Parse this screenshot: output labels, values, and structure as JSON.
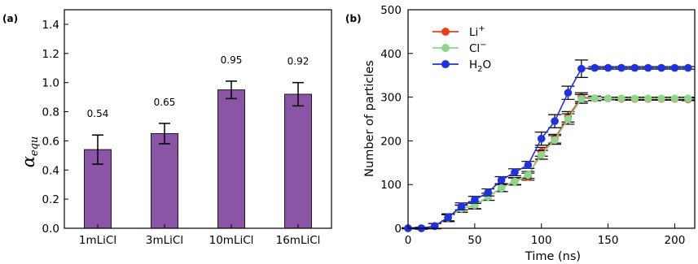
{
  "chart_data": [
    {
      "panel_label": "(a)",
      "type": "bar",
      "categories": [
        "1mLiCl",
        "3mLiCl",
        "10mLiCl",
        "16mLiCl"
      ],
      "values": [
        0.54,
        0.65,
        0.95,
        0.92
      ],
      "errors": [
        0.1,
        0.07,
        0.06,
        0.08
      ],
      "value_labels": [
        "0.54",
        "0.65",
        "0.95",
        "0.92"
      ],
      "ylabel_symbol": "α",
      "ylabel_subscript": "equ",
      "ylim": [
        0.0,
        1.5
      ],
      "yticks": [
        0.0,
        0.2,
        0.4,
        0.6,
        0.8,
        1.0,
        1.2,
        1.4
      ],
      "ytick_labels": [
        "0.0",
        "0.2",
        "0.4",
        "0.6",
        "0.8",
        "1.0",
        "1.2",
        "1.4"
      ],
      "bar_color": "#8b55a5",
      "grid": false
    },
    {
      "panel_label": "(b)",
      "type": "line",
      "xlabel": "Time (ns)",
      "ylabel": "Number of particles",
      "xlim": [
        0,
        215
      ],
      "ylim": [
        0,
        500
      ],
      "xticks": [
        0,
        50,
        100,
        150,
        200
      ],
      "xtick_labels": [
        "0",
        "50",
        "100",
        "150",
        "200"
      ],
      "yticks": [
        0,
        100,
        200,
        300,
        400,
        500
      ],
      "ytick_labels": [
        "0",
        "100",
        "200",
        "300",
        "400",
        "500"
      ],
      "legend_position": "top-left",
      "grid": false,
      "x": [
        0,
        10,
        20,
        30,
        40,
        50,
        60,
        70,
        80,
        90,
        100,
        110,
        120,
        130,
        140,
        150,
        160,
        170,
        180,
        190,
        200,
        210
      ],
      "series": [
        {
          "name": "Li⁺",
          "legend_base": "Li",
          "legend_sup": "+",
          "color": "#e8401c",
          "values": [
            0,
            0,
            5,
            23,
            45,
            52,
            72,
            92,
            108,
            118,
            175,
            205,
            255,
            300,
            297,
            297,
            296,
            296,
            296,
            296,
            296,
            295
          ],
          "errors": [
            1,
            2,
            6,
            8,
            8,
            8,
            8,
            8,
            8,
            8,
            10,
            10,
            12,
            10,
            5,
            3,
            3,
            3,
            3,
            3,
            3,
            3
          ]
        },
        {
          "name": "Cl⁻",
          "legend_base": "Cl",
          "legend_sup": "−",
          "color": "#8fd68c",
          "values": [
            0,
            0,
            5,
            23,
            45,
            53,
            72,
            92,
            107,
            122,
            168,
            202,
            250,
            296,
            297,
            297,
            297,
            297,
            297,
            297,
            297,
            297
          ],
          "errors": [
            1,
            2,
            6,
            8,
            8,
            8,
            8,
            8,
            8,
            8,
            10,
            10,
            12,
            10,
            5,
            3,
            3,
            3,
            3,
            3,
            3,
            3
          ]
        },
        {
          "name": "H₂O",
          "legend_base": "H",
          "legend_sub": "2",
          "legend_tail": "O",
          "color": "#2031e0",
          "values": [
            0,
            0,
            5,
            25,
            50,
            65,
            82,
            110,
            128,
            145,
            205,
            245,
            310,
            365,
            367,
            367,
            367,
            367,
            367,
            367,
            367,
            367
          ],
          "errors": [
            1,
            2,
            6,
            8,
            8,
            8,
            8,
            8,
            8,
            8,
            15,
            15,
            15,
            20,
            3,
            3,
            3,
            3,
            3,
            3,
            3,
            3
          ]
        }
      ]
    }
  ]
}
